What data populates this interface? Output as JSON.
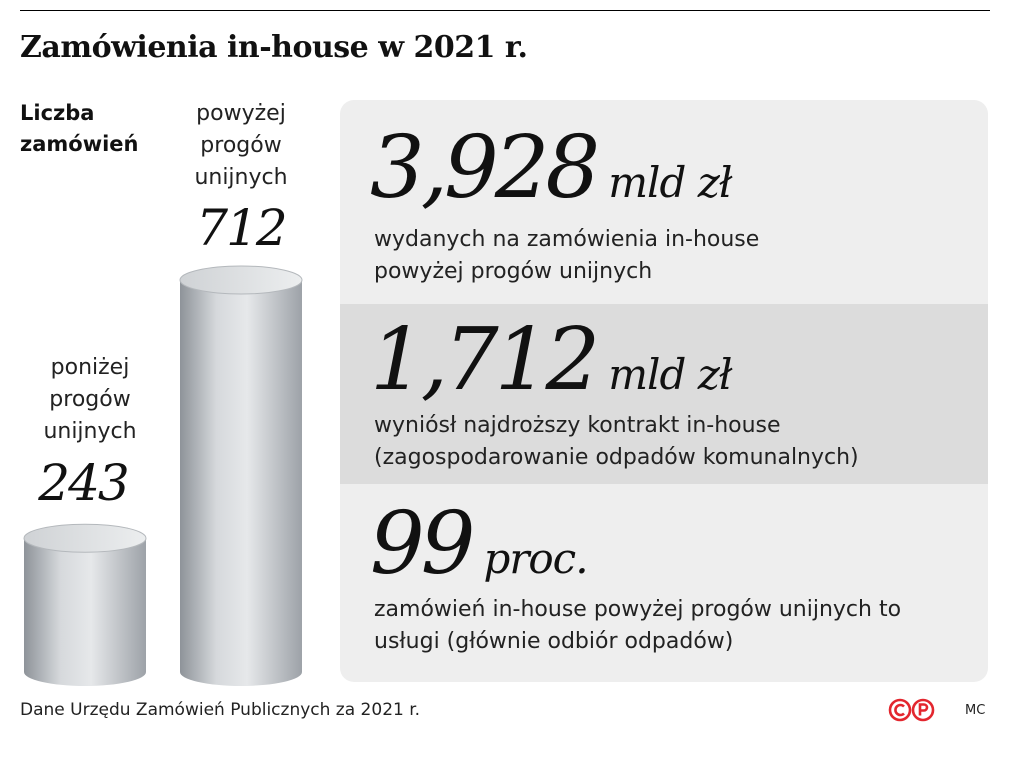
{
  "chart_data": {
    "type": "bar",
    "title": "Zamówienia in-house w 2021 r.",
    "ylabel": "Liczba zamówień",
    "categories": [
      "poniżej progów unijnych",
      "powyżej progów unijnych"
    ],
    "values": [
      243,
      712
    ],
    "value_labels": [
      "243",
      "712"
    ],
    "bar_style": "3d-cylinder",
    "bar_color": "#c8cbce",
    "ylim": [
      0,
      712
    ],
    "grid": false
  },
  "stats": [
    {
      "value": "3,928",
      "unit": "mld zł",
      "description": "wydanych na zamówienia in-house powyżej progów unijnych"
    },
    {
      "value": "1,712",
      "unit": "mld zł",
      "description": "wyniósł najdroższy kontrakt in-house (zagospodarowanie odpadów komunalnych)"
    },
    {
      "value": "99",
      "unit": "proc.",
      "description": "zamówień in-house powyżej progów unijnych to usługi (głównie odbiór odpadów)"
    }
  ],
  "source": "Dane Urzędu Zamówień Publicznych za 2021 r.",
  "logo": {
    "text": "©℗",
    "color": "#e3262e",
    "icon": "publisher-logo-icon"
  },
  "credit": "MC",
  "colors": {
    "panel": "#eeeeee",
    "panel_alt": "#dcdcdc",
    "text": "#111111"
  }
}
